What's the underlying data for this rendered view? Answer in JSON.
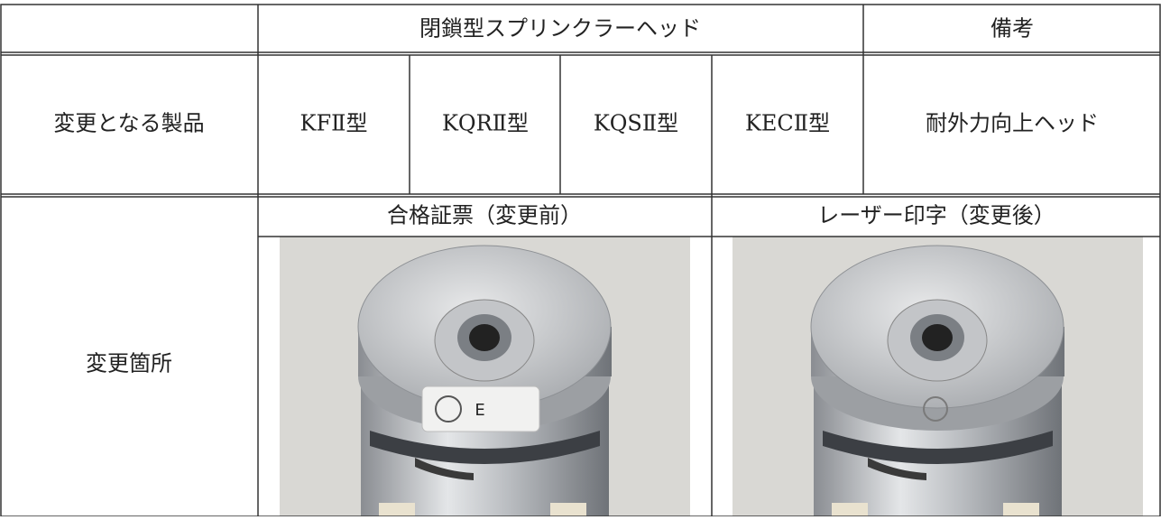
{
  "table": {
    "header": {
      "product_group": "閉鎖型スプリンクラーヘッド",
      "remarks": "備考"
    },
    "product_row": {
      "label": "変更となる製品",
      "products": [
        "KFⅡ型",
        "KQRⅡ型",
        "KQSⅡ型",
        "KECⅡ型"
      ],
      "remarks_item": "耐外力向上ヘッド"
    },
    "change_row": {
      "label": "変更箇所",
      "before": "合格証票（変更前）",
      "after": "レーザー印字（変更後）"
    },
    "photo": {
      "sticker_text": "E"
    }
  }
}
